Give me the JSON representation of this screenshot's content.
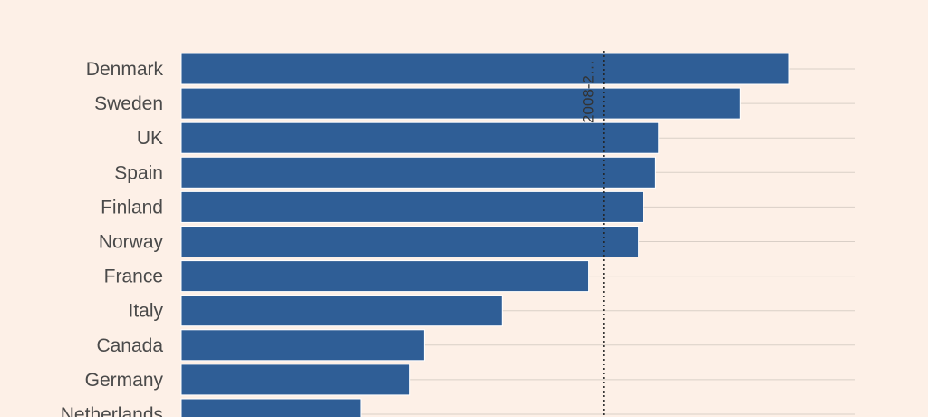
{
  "chart_data": {
    "type": "bar",
    "orientation": "horizontal",
    "categories": [
      "Denmark",
      "Sweden",
      "UK",
      "Spain",
      "Finland",
      "Norway",
      "France",
      "Italy",
      "Canada",
      "Germany",
      "Netherlands"
    ],
    "values": [
      100,
      92,
      78.5,
      78,
      76,
      75.2,
      67,
      52.8,
      40,
      37.5,
      29.5
    ],
    "xlim": [
      0,
      112
    ],
    "reference_line": {
      "value": 69.5,
      "label": "2008-2…",
      "style": "dotted"
    },
    "grid": "horizontal",
    "title": "",
    "xlabel": "",
    "ylabel": ""
  },
  "colors": {
    "background": "#fdf0e7",
    "bar": "#2f5e96",
    "bar_edge": "#ffffff",
    "grid": "#d9cfc7",
    "reference_line": "#222222",
    "label": "#4a4a4a"
  }
}
